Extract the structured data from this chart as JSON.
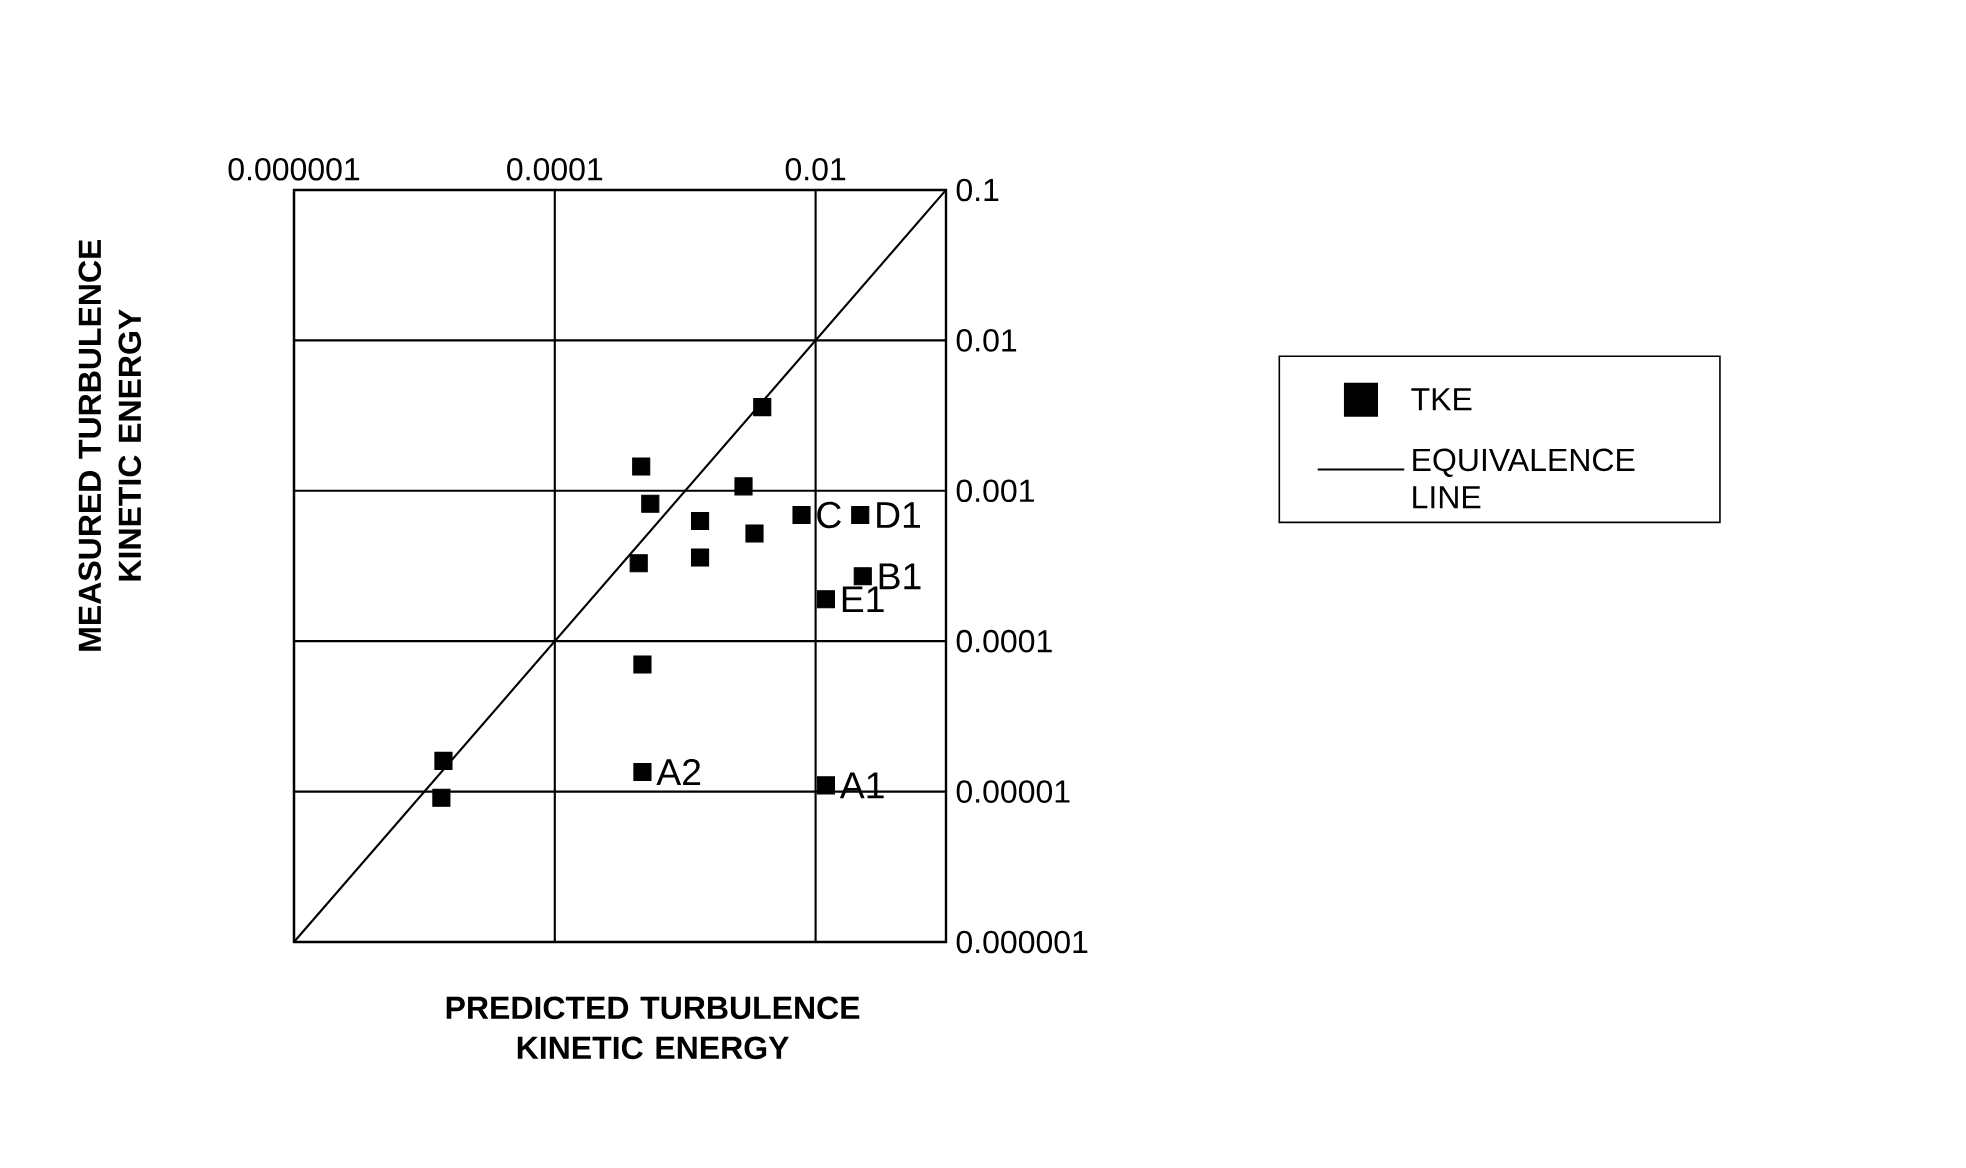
{
  "chart_data": {
    "type": "scatter",
    "xlabel": "PREDICTED TURBULENCE KINETIC ENERGY",
    "ylabel": "MEASURED TURBULENCE KINETIC ENERGY",
    "log": "xy",
    "grid": true,
    "legend": "right",
    "marker": "square",
    "xlim": [
      1e-06,
      0.1
    ],
    "ylim": [
      1e-06,
      0.1
    ],
    "xticks": [
      {
        "value": 1e-06,
        "label": "0.000001"
      },
      0.0001,
      0.01
    ],
    "yticks": [
      0.1,
      0.01,
      0.001,
      0.0001,
      {
        "value": 1e-05,
        "label": "0.00001"
      },
      {
        "value": 1e-06,
        "label": "0.000001"
      }
    ],
    "series": [
      {
        "name": "TKE",
        "type": "scatter",
        "color": "#000000",
        "x": [
          0.0039,
          0.00046,
          0.00054,
          0.0013,
          0.0028,
          0.0034,
          0.0078,
          0.022,
          0.0013,
          0.00044,
          0.023,
          0.012,
          0.00047,
          1.4e-05,
          1.35e-05,
          0.00047,
          0.012
        ],
        "values": [
          0.0036,
          0.00145,
          0.00082,
          0.00063,
          0.00107,
          0.00052,
          0.00069,
          0.00069,
          0.00036,
          0.00033,
          0.00027,
          0.00019,
          7e-05,
          1.6e-05,
          9.1e-06,
          1.35e-05,
          1.1e-05
        ]
      },
      {
        "name": "EQUIVALENCE LINE",
        "type": "line",
        "color": "#000000",
        "line_style": "solid",
        "marker": "none",
        "x": [
          1e-06,
          0.1
        ],
        "values": [
          1e-06,
          0.1
        ]
      }
    ],
    "annotations": [
      {
        "text": "C",
        "x": 0.0078,
        "y": 0.00069
      },
      {
        "text": "D1",
        "x": 0.022,
        "y": 0.00069
      },
      {
        "text": "B1",
        "x": 0.023,
        "y": 0.00027
      },
      {
        "text": "E1",
        "x": 0.012,
        "y": 0.00019
      },
      {
        "text": "A2",
        "x": 0.00047,
        "y": 1.35e-05
      },
      {
        "text": "A1",
        "x": 0.012,
        "y": 1.1e-05
      }
    ]
  }
}
